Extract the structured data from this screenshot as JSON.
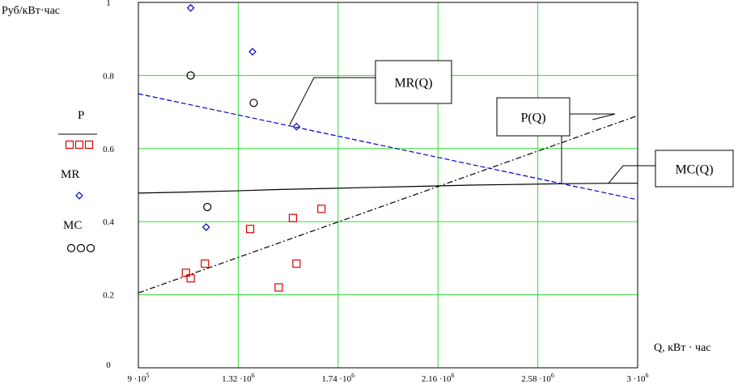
{
  "chart_data": {
    "type": "scatter",
    "ylabel": "Руб/кВт·час",
    "xlabel": "Q, кВт · час",
    "xlim": [
      900000,
      3000000
    ],
    "ylim": [
      0,
      1
    ],
    "grid": true,
    "x_ticks": [
      {
        "value": 900000,
        "mant": "9",
        "exp": "5"
      },
      {
        "value": 1320000,
        "mant": "1.32",
        "exp": "6"
      },
      {
        "value": 1740000,
        "mant": "1.74",
        "exp": "6"
      },
      {
        "value": 2160000,
        "mant": "2.16",
        "exp": "6"
      },
      {
        "value": 2580000,
        "mant": "2.58",
        "exp": "6"
      },
      {
        "value": 3000000,
        "mant": "3",
        "exp": "6"
      }
    ],
    "y_ticks": [
      {
        "value": 0,
        "label": "0"
      },
      {
        "value": 0.2,
        "label": "0.2"
      },
      {
        "value": 0.4,
        "label": "0.4"
      },
      {
        "value": 0.6,
        "label": "0.6"
      },
      {
        "value": 0.8,
        "label": "0.8"
      },
      {
        "value": 1.0,
        "label": "1"
      }
    ],
    "series": [
      {
        "name": "P",
        "marker": "square",
        "color": "#dd0000",
        "x": [
          1100000,
          1120000,
          1180000,
          1370000,
          1490000,
          1550000,
          1565000,
          1670000
        ],
        "y": [
          0.26,
          0.245,
          0.285,
          0.38,
          0.22,
          0.41,
          0.285,
          0.435
        ]
      },
      {
        "name": "MR",
        "marker": "diamond",
        "color": "#0000cc",
        "x": [
          1120000,
          1185000,
          1380000,
          1565000
        ],
        "y": [
          0.985,
          0.385,
          0.865,
          0.66
        ]
      },
      {
        "name": "MC",
        "marker": "circle",
        "color": "#000000",
        "x": [
          1120000,
          1190000,
          1385000
        ],
        "y": [
          0.8,
          0.44,
          0.725
        ]
      }
    ],
    "lines": [
      {
        "name": "MR(Q)",
        "style": "dashed",
        "color": "#0000cc",
        "x": [
          900000,
          3000000
        ],
        "y": [
          0.75,
          0.46
        ]
      },
      {
        "name": "P(Q)",
        "style": "dashdot",
        "color": "#000000",
        "x": [
          900000,
          3000000
        ],
        "y": [
          0.205,
          0.69
        ]
      },
      {
        "name": "MC(Q)",
        "style": "solid",
        "color": "#000000",
        "x": [
          900000,
          1100000,
          1300000,
          1500000,
          1700000,
          1900000,
          2100000,
          2300000,
          2500000,
          2700000,
          2900000,
          3000000
        ],
        "y": [
          0.478,
          0.481,
          0.484,
          0.488,
          0.491,
          0.494,
          0.497,
          0.5,
          0.502,
          0.504,
          0.505,
          0.505
        ]
      }
    ],
    "legend": {
      "placement": "left",
      "entries": [
        {
          "label": "P",
          "marker": "square",
          "color": "#dd0000"
        },
        {
          "label": "MR",
          "marker": "diamond",
          "color": "#0000cc"
        },
        {
          "label": "MC",
          "marker": "circle",
          "color": "#000000"
        }
      ]
    },
    "annotations": [
      {
        "label": "MR(Q)",
        "target_x": 1565000,
        "target_y": 0.665
      },
      {
        "label": "P(Q)",
        "target_x": 2810000,
        "target_y": 0.67
      },
      {
        "label": "MC(Q)",
        "target_x": 2800000,
        "target_y": 0.505
      }
    ]
  }
}
